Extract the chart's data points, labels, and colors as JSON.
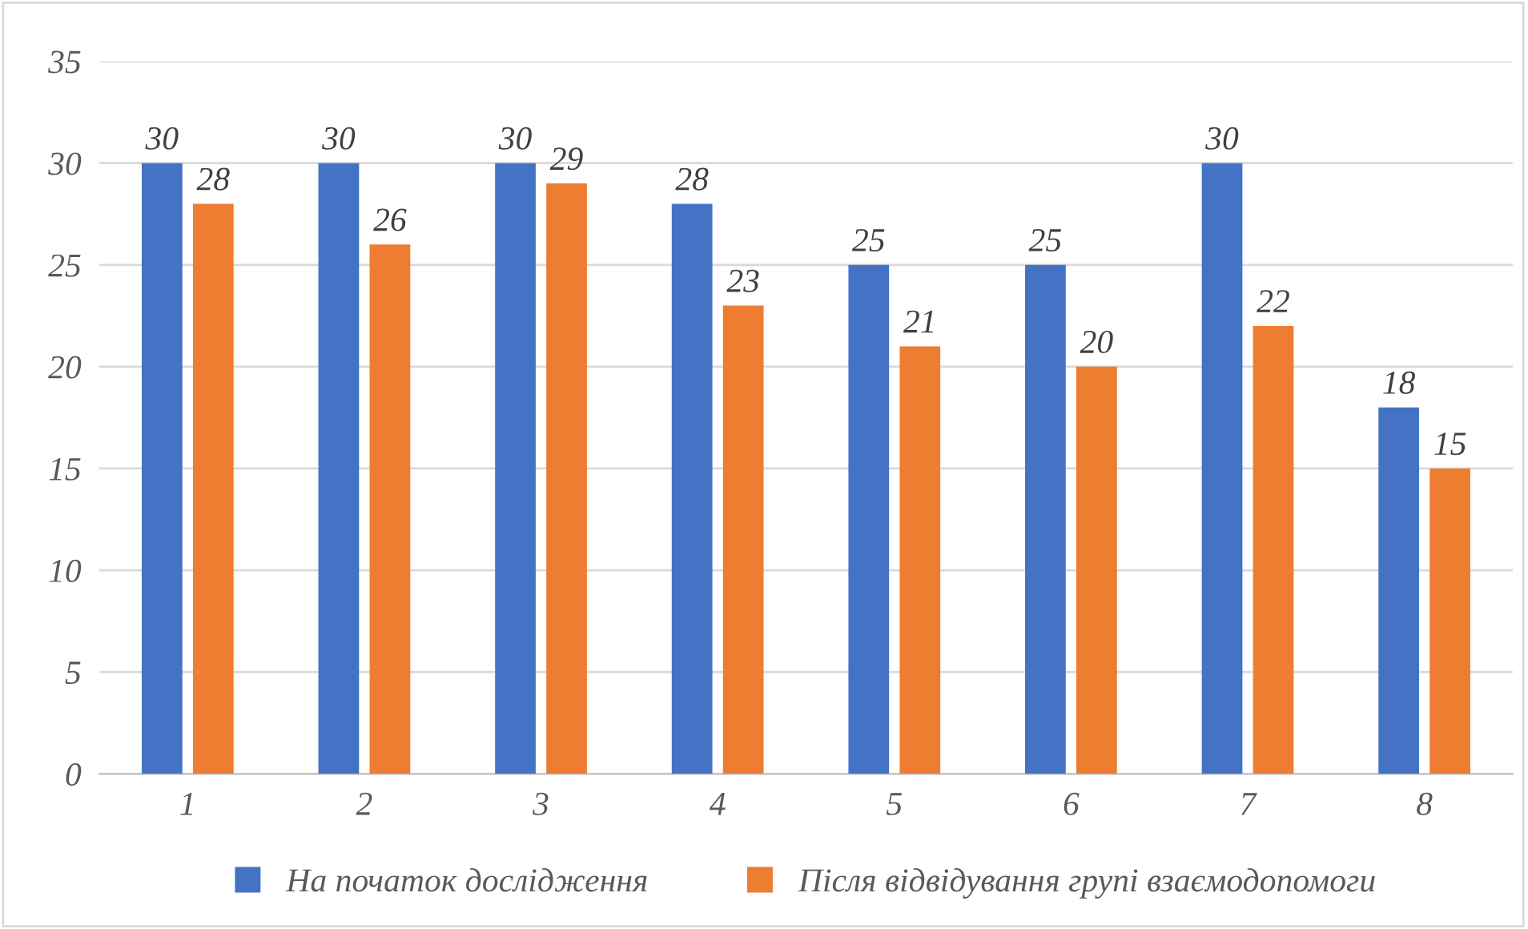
{
  "chart_data": {
    "type": "bar",
    "categories": [
      "1",
      "2",
      "3",
      "4",
      "5",
      "6",
      "7",
      "8"
    ],
    "series": [
      {
        "name": "На початок дослідження",
        "color": "#4472c4",
        "values": [
          30,
          30,
          30,
          28,
          25,
          25,
          30,
          18
        ]
      },
      {
        "name": "Після відвідування групі взаємодопомоги",
        "color": "#ed7d31",
        "values": [
          28,
          26,
          29,
          23,
          21,
          20,
          22,
          15
        ]
      }
    ],
    "ylim": [
      0,
      35
    ],
    "yticks": [
      0,
      5,
      10,
      15,
      20,
      25,
      30,
      35
    ],
    "grid": "y",
    "legend": "bottom",
    "data_labels": true
  }
}
